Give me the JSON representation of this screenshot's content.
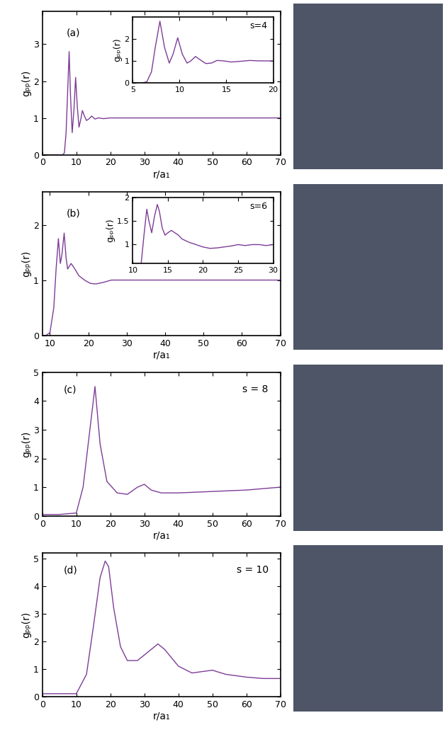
{
  "chart_data": [
    {
      "type": "line",
      "annotations": [
        "(a)"
      ],
      "xlabel": "r/a₁",
      "ylabel": "gₚₚ(r)",
      "color": "#7d3c98",
      "xlim": [
        0,
        70
      ],
      "xticks": [
        0,
        10,
        20,
        30,
        40,
        50,
        60,
        70
      ],
      "ylim": [
        0,
        3.9
      ],
      "yticks": [
        0,
        1,
        2,
        3
      ],
      "x": [
        0,
        6,
        6.5,
        7,
        7.5,
        7.9,
        8.3,
        8.8,
        9.3,
        9.8,
        10.3,
        10.8,
        11.3,
        11.8,
        12.4,
        13,
        13.8,
        14.5,
        15.5,
        16.5,
        18,
        20,
        25,
        30,
        40,
        50,
        60,
        70
      ],
      "values": [
        0,
        0,
        0.05,
        0.6,
        1.8,
        2.8,
        1.6,
        0.6,
        1.2,
        2.1,
        1.3,
        0.75,
        0.95,
        1.2,
        1.05,
        0.93,
        0.98,
        1.05,
        0.97,
        1.0,
        0.98,
        1.0,
        1.0,
        1.0,
        1.0,
        1.0,
        1.0,
        1.0
      ],
      "inset": {
        "type": "line",
        "annotations": [
          "s=4"
        ],
        "ylabel": "gₚₚ(r)",
        "color": "#7d3c98",
        "xlim": [
          5,
          20
        ],
        "xticks": [
          5,
          10,
          15,
          20
        ],
        "ylim": [
          0,
          3
        ],
        "yticks": [
          0,
          1,
          2
        ],
        "x": [
          5,
          6,
          6.5,
          7,
          7.4,
          7.9,
          8.4,
          8.9,
          9.3,
          9.8,
          10.3,
          10.8,
          11.2,
          11.7,
          12.2,
          12.8,
          13.4,
          14,
          14.7,
          15.5,
          16.5,
          17.5,
          18.5,
          20
        ],
        "values": [
          0,
          0,
          0.05,
          0.5,
          1.6,
          2.8,
          1.6,
          0.9,
          1.3,
          2.05,
          1.3,
          0.9,
          1.0,
          1.2,
          1.05,
          0.88,
          0.9,
          1.02,
          1.0,
          0.95,
          0.98,
          1.02,
          1.0,
          1.0
        ]
      }
    },
    {
      "type": "line",
      "annotations": [
        "(b)"
      ],
      "xlabel": "r/a₁",
      "ylabel": "gₚₚ(r)",
      "color": "#7d3c98",
      "xlim": [
        8,
        70
      ],
      "xticks": [
        10,
        20,
        30,
        40,
        50,
        60,
        70
      ],
      "ylim": [
        0,
        2.6
      ],
      "yticks": [
        0,
        1,
        2
      ],
      "x": [
        8,
        9,
        10,
        11,
        11.6,
        12.2,
        12.7,
        13.1,
        13.7,
        14.2,
        14.6,
        15.5,
        16.5,
        17.5,
        19,
        20.5,
        22,
        24,
        26,
        28,
        30,
        35,
        40,
        50,
        60,
        70
      ],
      "values": [
        0,
        0,
        0.05,
        0.5,
        1.2,
        1.75,
        1.3,
        1.45,
        1.85,
        1.4,
        1.2,
        1.3,
        1.2,
        1.08,
        1.0,
        0.94,
        0.93,
        0.96,
        1.0,
        1.0,
        1.0,
        1.0,
        1.0,
        1.0,
        1.0,
        1.0
      ],
      "inset": {
        "type": "line",
        "annotations": [
          "s=6"
        ],
        "ylabel": "gₚₚ(r)",
        "color": "#7d3c98",
        "xlim": [
          10,
          30
        ],
        "xticks": [
          10,
          15,
          20,
          25,
          30
        ],
        "ylim": [
          0.6,
          2
        ],
        "yticks": [
          1,
          1.5,
          2
        ],
        "x": [
          11.2,
          11.6,
          12,
          12.3,
          12.7,
          13.1,
          13.5,
          13.8,
          14.2,
          14.6,
          15,
          15.5,
          16,
          16.5,
          17,
          18,
          19,
          20,
          21,
          22,
          23,
          24,
          25,
          26,
          27,
          28,
          29,
          30
        ],
        "values": [
          0.6,
          1.2,
          1.75,
          1.5,
          1.25,
          1.6,
          1.85,
          1.7,
          1.35,
          1.2,
          1.25,
          1.3,
          1.25,
          1.2,
          1.12,
          1.05,
          1.0,
          0.95,
          0.92,
          0.93,
          0.95,
          0.97,
          1.0,
          0.98,
          1.0,
          1.0,
          0.98,
          1.0
        ]
      }
    },
    {
      "type": "line",
      "annotations": [
        "(c)",
        "s = 8"
      ],
      "xlabel": "r/a₁",
      "ylabel": "gₚₚ(r)",
      "color": "#7d3c98",
      "xlim": [
        0,
        70
      ],
      "xticks": [
        0,
        10,
        20,
        30,
        40,
        50,
        60,
        70
      ],
      "ylim": [
        0,
        5
      ],
      "yticks": [
        0,
        1,
        2,
        3,
        4,
        5
      ],
      "x": [
        0,
        5,
        10,
        12,
        14,
        15.5,
        17,
        19,
        22,
        25,
        28,
        30,
        32,
        35,
        40,
        50,
        60,
        70
      ],
      "values": [
        0.05,
        0.05,
        0.1,
        1.0,
        3.0,
        4.5,
        2.5,
        1.2,
        0.8,
        0.75,
        1.0,
        1.1,
        0.9,
        0.8,
        0.8,
        0.85,
        0.9,
        1.0
      ]
    },
    {
      "type": "line",
      "annotations": [
        "(d)",
        "s = 10"
      ],
      "xlabel": "r/a₁",
      "ylabel": "gₚₚ(r)",
      "color": "#7d3c98",
      "xlim": [
        0,
        70
      ],
      "xticks": [
        0,
        10,
        20,
        30,
        40,
        50,
        60,
        70
      ],
      "ylim": [
        0,
        5.2
      ],
      "yticks": [
        0,
        1,
        2,
        3,
        4,
        5
      ],
      "x": [
        0,
        5,
        10,
        13,
        15,
        17,
        18.5,
        19.5,
        21,
        23,
        25,
        28,
        31,
        34,
        36,
        40,
        44,
        47,
        50,
        54,
        60,
        65,
        70
      ],
      "values": [
        0.1,
        0.1,
        0.1,
        0.8,
        2.5,
        4.3,
        4.9,
        4.7,
        3.2,
        1.8,
        1.3,
        1.3,
        1.6,
        1.9,
        1.7,
        1.1,
        0.85,
        0.9,
        0.95,
        0.8,
        0.7,
        0.65,
        0.65
      ]
    }
  ]
}
